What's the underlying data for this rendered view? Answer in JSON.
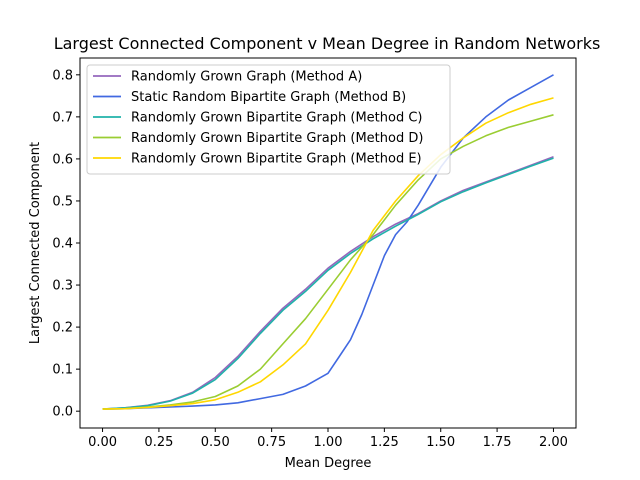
{
  "chart_data": {
    "type": "line",
    "title": "Largest Connected Component v Mean Degree in Random Networks",
    "xlabel": "Mean Degree",
    "ylabel": "Largest Connected Component",
    "xlim": [
      -0.1,
      2.1
    ],
    "ylim": [
      -0.04,
      0.84
    ],
    "xticks": [
      0.0,
      0.25,
      0.5,
      0.75,
      1.0,
      1.25,
      1.5,
      1.75,
      2.0
    ],
    "xtick_labels": [
      "0.00",
      "0.25",
      "0.50",
      "0.75",
      "1.00",
      "1.25",
      "1.50",
      "1.75",
      "2.00"
    ],
    "yticks": [
      0.0,
      0.1,
      0.2,
      0.3,
      0.4,
      0.5,
      0.6,
      0.7,
      0.8
    ],
    "ytick_labels": [
      "0.0",
      "0.1",
      "0.2",
      "0.3",
      "0.4",
      "0.5",
      "0.6",
      "0.7",
      "0.8"
    ],
    "grid": false,
    "legend_position": "upper-left",
    "series": [
      {
        "name": "Randomly Grown Graph (Method A)",
        "color": "#9467bd",
        "x": [
          0.0,
          0.1,
          0.2,
          0.3,
          0.4,
          0.5,
          0.6,
          0.7,
          0.8,
          0.9,
          1.0,
          1.1,
          1.2,
          1.3,
          1.4,
          1.5,
          1.6,
          1.7,
          1.8,
          1.9,
          2.0
        ],
        "y": [
          0.005,
          0.008,
          0.014,
          0.025,
          0.045,
          0.08,
          0.13,
          0.19,
          0.245,
          0.29,
          0.34,
          0.38,
          0.415,
          0.445,
          0.47,
          0.5,
          0.525,
          0.545,
          0.565,
          0.585,
          0.605
        ]
      },
      {
        "name": "Static Random Bipartite Graph (Method B)",
        "color": "#4169e1",
        "x": [
          0.0,
          0.1,
          0.2,
          0.3,
          0.4,
          0.5,
          0.6,
          0.7,
          0.8,
          0.9,
          1.0,
          1.05,
          1.1,
          1.15,
          1.2,
          1.25,
          1.3,
          1.35,
          1.4,
          1.5,
          1.6,
          1.7,
          1.8,
          1.9,
          2.0
        ],
        "y": [
          0.005,
          0.006,
          0.008,
          0.01,
          0.012,
          0.015,
          0.02,
          0.03,
          0.04,
          0.06,
          0.09,
          0.13,
          0.17,
          0.23,
          0.3,
          0.37,
          0.42,
          0.45,
          0.49,
          0.58,
          0.65,
          0.7,
          0.74,
          0.77,
          0.8
        ]
      },
      {
        "name": "Randomly Grown Bipartite Graph (Method C)",
        "color": "#20b2aa",
        "x": [
          0.0,
          0.1,
          0.2,
          0.3,
          0.4,
          0.5,
          0.6,
          0.7,
          0.8,
          0.9,
          1.0,
          1.1,
          1.2,
          1.3,
          1.4,
          1.5,
          1.6,
          1.7,
          1.8,
          1.9,
          2.0
        ],
        "y": [
          0.005,
          0.008,
          0.013,
          0.024,
          0.043,
          0.075,
          0.125,
          0.185,
          0.24,
          0.285,
          0.335,
          0.375,
          0.41,
          0.44,
          0.468,
          0.498,
          0.522,
          0.543,
          0.563,
          0.583,
          0.602
        ]
      },
      {
        "name": "Randomly Grown Bipartite Graph (Method D)",
        "color": "#9acd32",
        "x": [
          0.0,
          0.1,
          0.2,
          0.3,
          0.4,
          0.5,
          0.6,
          0.7,
          0.8,
          0.9,
          1.0,
          1.1,
          1.2,
          1.3,
          1.4,
          1.5,
          1.6,
          1.7,
          1.8,
          1.9,
          2.0
        ],
        "y": [
          0.005,
          0.006,
          0.01,
          0.015,
          0.022,
          0.035,
          0.06,
          0.1,
          0.16,
          0.22,
          0.29,
          0.36,
          0.42,
          0.49,
          0.55,
          0.6,
          0.63,
          0.655,
          0.675,
          0.69,
          0.705
        ]
      },
      {
        "name": "Randomly Grown Bipartite Graph (Method E)",
        "color": "#ffd700",
        "x": [
          0.0,
          0.1,
          0.2,
          0.3,
          0.4,
          0.5,
          0.6,
          0.7,
          0.8,
          0.9,
          1.0,
          1.1,
          1.2,
          1.3,
          1.4,
          1.5,
          1.6,
          1.7,
          1.8,
          1.9,
          2.0
        ],
        "y": [
          0.005,
          0.006,
          0.009,
          0.013,
          0.018,
          0.027,
          0.045,
          0.07,
          0.11,
          0.16,
          0.24,
          0.33,
          0.43,
          0.5,
          0.56,
          0.61,
          0.65,
          0.685,
          0.71,
          0.73,
          0.745
        ]
      }
    ]
  }
}
